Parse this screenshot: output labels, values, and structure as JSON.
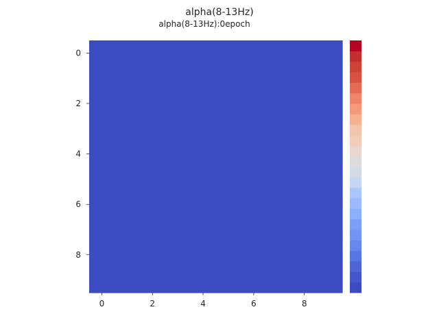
{
  "chart_data": {
    "type": "heatmap",
    "suptitle": "alpha(8-13Hz)",
    "title": "alpha(8-13Hz):0epoch",
    "rows": 10,
    "cols": 10,
    "values": [
      [
        0,
        0,
        0,
        0,
        0,
        0,
        0,
        0,
        0,
        0
      ],
      [
        0,
        0,
        0,
        0,
        0,
        0,
        0,
        0,
        0,
        0
      ],
      [
        0,
        0,
        0,
        0,
        0,
        0,
        0,
        0,
        0,
        0
      ],
      [
        0,
        0,
        0,
        0,
        0,
        0,
        0,
        0,
        0,
        0
      ],
      [
        0,
        0,
        0,
        0,
        0,
        0,
        0,
        0,
        0,
        0
      ],
      [
        0,
        0,
        0,
        0,
        0,
        0,
        0,
        0,
        0,
        0
      ],
      [
        0,
        0,
        0,
        0,
        0,
        0,
        0,
        0,
        0,
        0
      ],
      [
        0,
        0,
        0,
        0,
        0,
        0,
        0,
        0,
        0,
        0
      ],
      [
        0,
        0,
        0,
        0,
        0,
        0,
        0,
        0,
        0,
        0
      ],
      [
        0,
        0,
        0,
        0,
        0,
        0,
        0,
        0,
        0,
        0
      ]
    ],
    "x_ticks": [
      "0",
      "2",
      "4",
      "6",
      "8"
    ],
    "y_ticks": [
      "0",
      "2",
      "4",
      "6",
      "8"
    ],
    "colormap": "coolwarm",
    "colorbar_levels": 20,
    "colorbar_colors": [
      "#3b4cc0",
      "#4358cb",
      "#4c67d5",
      "#5977e3",
      "#6788ee",
      "#7295f4",
      "#7b9ff9",
      "#8caffe",
      "#9abbff",
      "#aac7fd",
      "#c5d6f2",
      "#d3dbe7",
      "#dddcdc",
      "#e7d7ce",
      "#f1ccb8",
      "#f4c5ad",
      "#f7b093",
      "#f49a7b",
      "#ee8468",
      "#e36c55",
      "#d65244",
      "#cd4436",
      "#c32e31",
      "#b40426"
    ],
    "cell_color": "#3b4cc0"
  }
}
